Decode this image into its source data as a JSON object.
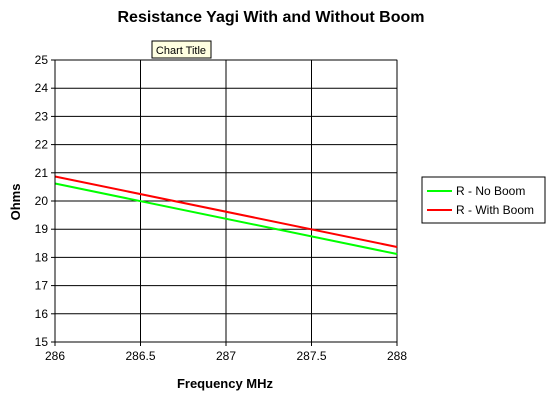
{
  "chart_data": {
    "type": "line",
    "title": "Resistance Yagi With and Without Boom",
    "xlabel": "Frequency MHz",
    "ylabel": "Ohms",
    "x": [
      286,
      288
    ],
    "xlim": [
      286,
      288
    ],
    "ylim": [
      15,
      25
    ],
    "xticks": [
      "286",
      "286.5",
      "287",
      "287.5",
      "288"
    ],
    "yticks": [
      "15",
      "16",
      "17",
      "18",
      "19",
      "20",
      "21",
      "22",
      "23",
      "24",
      "25"
    ],
    "grid": true,
    "legend_position": "right",
    "series": [
      {
        "name": "R - No Boom",
        "values": [
          20.62,
          18.12
        ],
        "color": "#00ff00"
      },
      {
        "name": "R - With Boom",
        "values": [
          20.87,
          18.37
        ],
        "color": "#ff0000"
      }
    ],
    "tooltip": "Chart Title",
    "colors": {
      "plot_background": "#ffffff",
      "grid": "#000000",
      "tooltip_background": "#ffffe1"
    }
  }
}
